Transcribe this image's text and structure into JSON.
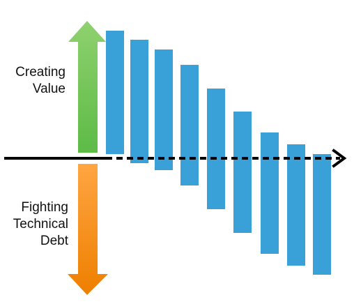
{
  "labels": {
    "up": [
      "Creating",
      "Value"
    ],
    "down": [
      "Fighting",
      "Technical",
      "Debt"
    ]
  },
  "colors": {
    "bar": "#3aa0d8",
    "axis": "#000000",
    "up_arrow_top": "#8fd16f",
    "up_arrow_bottom": "#5dbb46",
    "down_arrow_top": "#ffa542",
    "down_arrow_bottom": "#ee7f00"
  },
  "icons": {
    "up": "arrow-up-icon",
    "down": "arrow-down-icon",
    "axis": "arrow-right-icon"
  }
}
